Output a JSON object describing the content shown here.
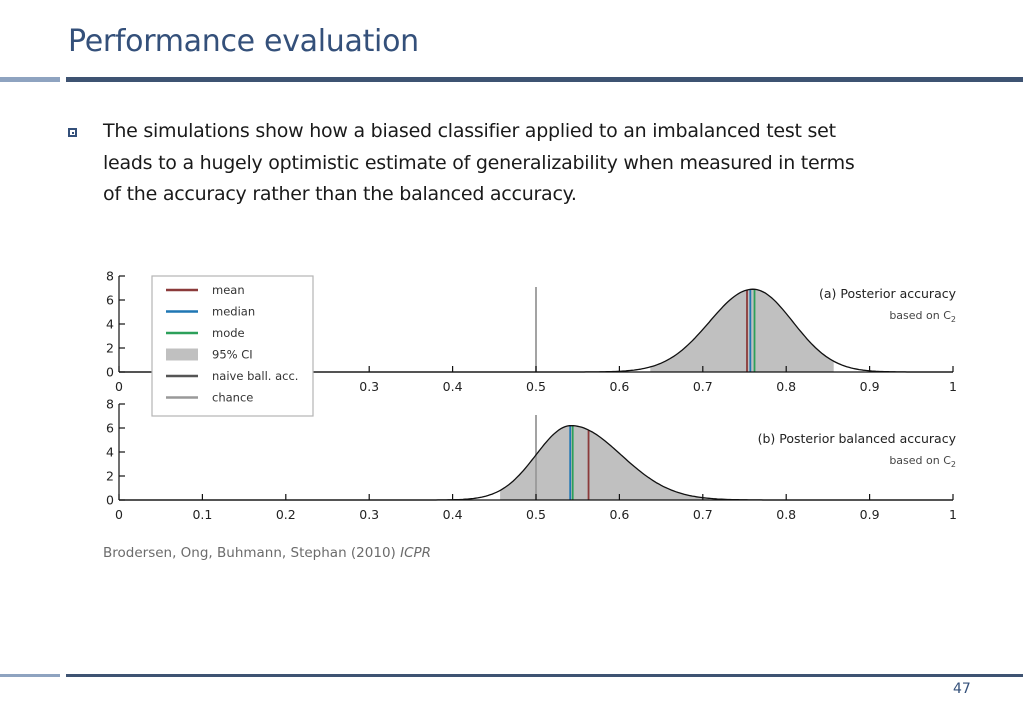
{
  "slide": {
    "title": "Performance evaluation",
    "bullet_lines": [
      "The simulations show how a biased classifier applied to an imbalanced test set",
      "leads to a hugely optimistic estimate of  generalizability when measured in terms",
      "of the accuracy rather than the balanced accuracy."
    ],
    "citation": "Brodersen, Ong, Buhmann, Stephan (2010) ",
    "citation_venue": "ICPR",
    "page_number": "47"
  },
  "legend": [
    {
      "label": "mean",
      "color": "#8b3a3a",
      "kind": "line"
    },
    {
      "label": "median",
      "color": "#1f77b4",
      "kind": "line"
    },
    {
      "label": "mode",
      "color": "#2ca05a",
      "kind": "line"
    },
    {
      "label": "95% CI",
      "color": "#c0c0c0",
      "kind": "patch"
    },
    {
      "label": "naive ball. acc.",
      "color": "#555555",
      "kind": "line"
    },
    {
      "label": "chance",
      "color": "#999999",
      "kind": "line"
    }
  ],
  "chart_data": [
    {
      "type": "area",
      "title": "(a)  Posterior accuracy",
      "subtitle": "based on C",
      "subtitle_subscript": "2",
      "xlim": [
        0,
        1
      ],
      "ylim": [
        0,
        8
      ],
      "x_ticks": [
        0,
        0.1,
        0.2,
        0.3,
        0.4,
        0.5,
        0.6,
        0.7,
        0.8,
        0.9,
        1
      ],
      "x_tick_labels": [
        "0",
        "",
        "",
        "0.3",
        "0.4",
        "0.5",
        "0.6",
        "0.7",
        "0.8",
        "0.9",
        "1"
      ],
      "y_ticks": [
        0,
        2,
        4,
        6,
        8
      ],
      "y_tick_labels": [
        "0",
        "2",
        "4",
        "6",
        "8"
      ],
      "density": {
        "mode": 0.76,
        "peak": 6.9,
        "sd_left": 0.052,
        "sd_right": 0.048
      },
      "ci": [
        0.637,
        0.857
      ],
      "mean": 0.753,
      "median": 0.757,
      "mode": 0.762,
      "chance": 0.5
    },
    {
      "type": "area",
      "title": "(b)  Posterior balanced accuracy",
      "subtitle": "based on C",
      "subtitle_subscript": "2",
      "xlim": [
        0,
        1
      ],
      "ylim": [
        0,
        8
      ],
      "x_ticks": [
        0,
        0.1,
        0.2,
        0.3,
        0.4,
        0.5,
        0.6,
        0.7,
        0.8,
        0.9,
        1
      ],
      "x_tick_labels": [
        "0",
        "0.1",
        "0.2",
        "0.3",
        "0.4",
        "0.5",
        "0.6",
        "0.7",
        "0.8",
        "0.9",
        "1"
      ],
      "y_ticks": [
        0,
        2,
        4,
        6,
        8
      ],
      "y_tick_labels": [
        "0",
        "2",
        "4",
        "6",
        "8"
      ],
      "density": {
        "mode": 0.542,
        "peak": 6.2,
        "sd_left": 0.042,
        "sd_right": 0.06
      },
      "ci": [
        0.457,
        0.708
      ],
      "mean": 0.563,
      "median": 0.541,
      "mode": 0.544,
      "chance": 0.5
    }
  ]
}
